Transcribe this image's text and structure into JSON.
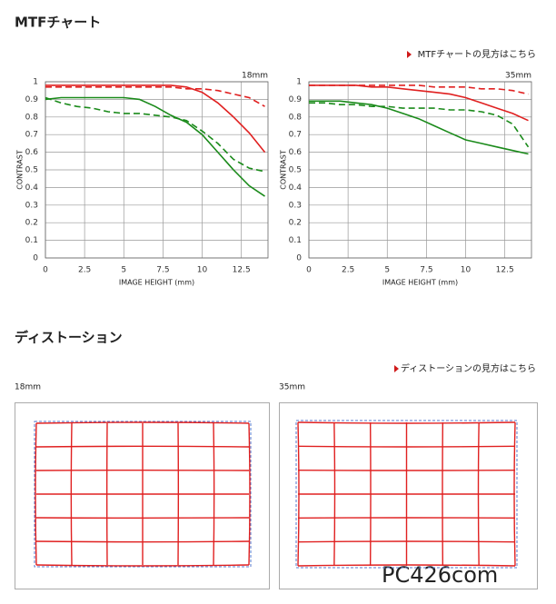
{
  "header": {
    "title": "MTFチャート",
    "link": "MTFチャートの見方はこちら"
  },
  "chart_data": [
    {
      "type": "line",
      "label": "18mm",
      "xlabel": "IMAGE HEIGHT (mm)",
      "ylabel": "CONTRAST",
      "x": [
        0,
        1,
        2,
        3,
        4,
        5,
        6,
        7,
        8,
        9,
        10,
        11,
        12,
        13,
        14
      ],
      "xlim": [
        0,
        14.2
      ],
      "xticks": [
        0,
        2.5,
        5,
        7.5,
        10,
        12.5
      ],
      "ylim": [
        0,
        1
      ],
      "yticks": [
        0,
        0.1,
        0.2,
        0.3,
        0.4,
        0.5,
        0.6,
        0.7,
        0.8,
        0.9,
        1
      ],
      "grid": true,
      "series": [
        {
          "color": "#e02020",
          "dashed": false,
          "values": [
            0.98,
            0.98,
            0.98,
            0.98,
            0.98,
            0.98,
            0.98,
            0.98,
            0.98,
            0.97,
            0.94,
            0.88,
            0.8,
            0.71,
            0.6
          ]
        },
        {
          "color": "#e02020",
          "dashed": true,
          "values": [
            0.97,
            0.97,
            0.97,
            0.97,
            0.97,
            0.97,
            0.97,
            0.97,
            0.97,
            0.96,
            0.96,
            0.95,
            0.93,
            0.91,
            0.86
          ]
        },
        {
          "color": "#1a8a1a",
          "dashed": false,
          "values": [
            0.9,
            0.91,
            0.91,
            0.91,
            0.91,
            0.91,
            0.9,
            0.86,
            0.81,
            0.77,
            0.7,
            0.6,
            0.5,
            0.41,
            0.35
          ]
        },
        {
          "color": "#1a8a1a",
          "dashed": true,
          "values": [
            0.91,
            0.88,
            0.86,
            0.85,
            0.83,
            0.82,
            0.82,
            0.81,
            0.8,
            0.78,
            0.72,
            0.65,
            0.56,
            0.51,
            0.49
          ]
        }
      ]
    },
    {
      "type": "line",
      "label": "35mm",
      "xlabel": "IMAGE HEIGHT (mm)",
      "ylabel": "CONTRAST",
      "x": [
        0,
        1,
        2,
        3,
        4,
        5,
        6,
        7,
        8,
        9,
        10,
        11,
        12,
        13,
        14
      ],
      "xlim": [
        0,
        14.2
      ],
      "xticks": [
        0,
        2.5,
        5,
        7.5,
        10,
        12.5
      ],
      "ylim": [
        0,
        1
      ],
      "yticks": [
        0,
        0.1,
        0.2,
        0.3,
        0.4,
        0.5,
        0.6,
        0.7,
        0.8,
        0.9,
        1
      ],
      "grid": true,
      "series": [
        {
          "color": "#e02020",
          "dashed": false,
          "values": [
            0.98,
            0.98,
            0.98,
            0.98,
            0.97,
            0.97,
            0.96,
            0.95,
            0.94,
            0.93,
            0.91,
            0.88,
            0.85,
            0.82,
            0.78
          ]
        },
        {
          "color": "#e02020",
          "dashed": true,
          "values": [
            0.98,
            0.98,
            0.98,
            0.98,
            0.98,
            0.98,
            0.98,
            0.98,
            0.97,
            0.97,
            0.97,
            0.96,
            0.96,
            0.95,
            0.93
          ]
        },
        {
          "color": "#1a8a1a",
          "dashed": false,
          "values": [
            0.89,
            0.89,
            0.89,
            0.88,
            0.87,
            0.85,
            0.82,
            0.79,
            0.75,
            0.71,
            0.67,
            0.65,
            0.63,
            0.61,
            0.59
          ]
        },
        {
          "color": "#1a8a1a",
          "dashed": true,
          "values": [
            0.88,
            0.88,
            0.87,
            0.87,
            0.86,
            0.86,
            0.85,
            0.85,
            0.85,
            0.84,
            0.84,
            0.83,
            0.81,
            0.76,
            0.63
          ]
        }
      ]
    }
  ],
  "distortion": {
    "title": "ディストーション",
    "link": "ディストーションの見方はこちら",
    "panels": [
      "18mm",
      "35mm"
    ]
  },
  "watermark": "PC426com"
}
